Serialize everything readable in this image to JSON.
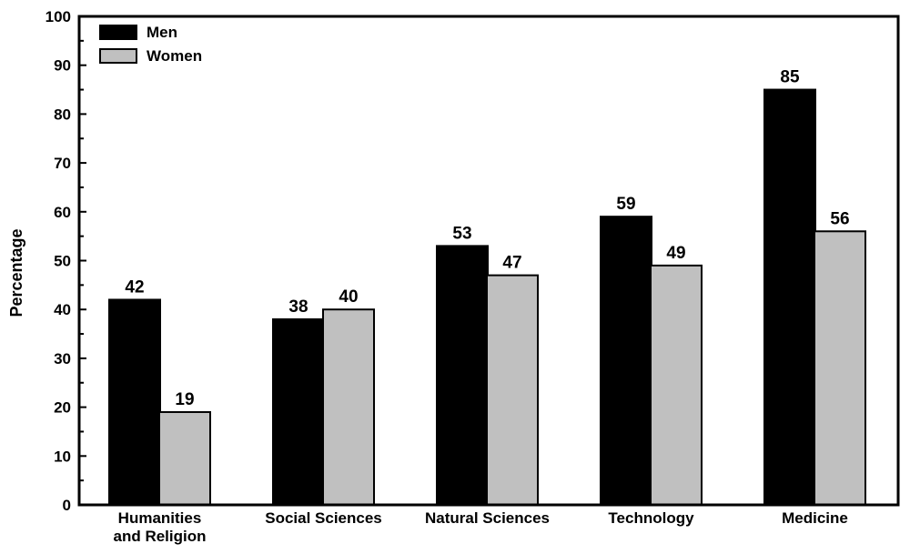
{
  "chart_data": {
    "type": "bar",
    "categories": [
      "Humanities and Religion",
      "Social Sciences",
      "Natural Sciences",
      "Technology",
      "Medicine"
    ],
    "category_lines": [
      [
        "Humanities",
        "and Religion"
      ],
      [
        "Social Sciences"
      ],
      [
        "Natural Sciences"
      ],
      [
        "Technology"
      ],
      [
        "Medicine"
      ]
    ],
    "series": [
      {
        "name": "Men",
        "values": [
          42,
          38,
          53,
          59,
          85
        ],
        "color": "#000000"
      },
      {
        "name": "Women",
        "values": [
          19,
          40,
          47,
          49,
          56
        ],
        "color": "#c0c0c0"
      }
    ],
    "title": "",
    "xlabel": "",
    "ylabel": "Percentage",
    "ylim": [
      0,
      100
    ],
    "yticks": [
      0,
      10,
      20,
      30,
      40,
      50,
      60,
      70,
      80,
      90,
      100
    ],
    "grid": false,
    "legend_position": "top-left",
    "data_labels": true
  }
}
